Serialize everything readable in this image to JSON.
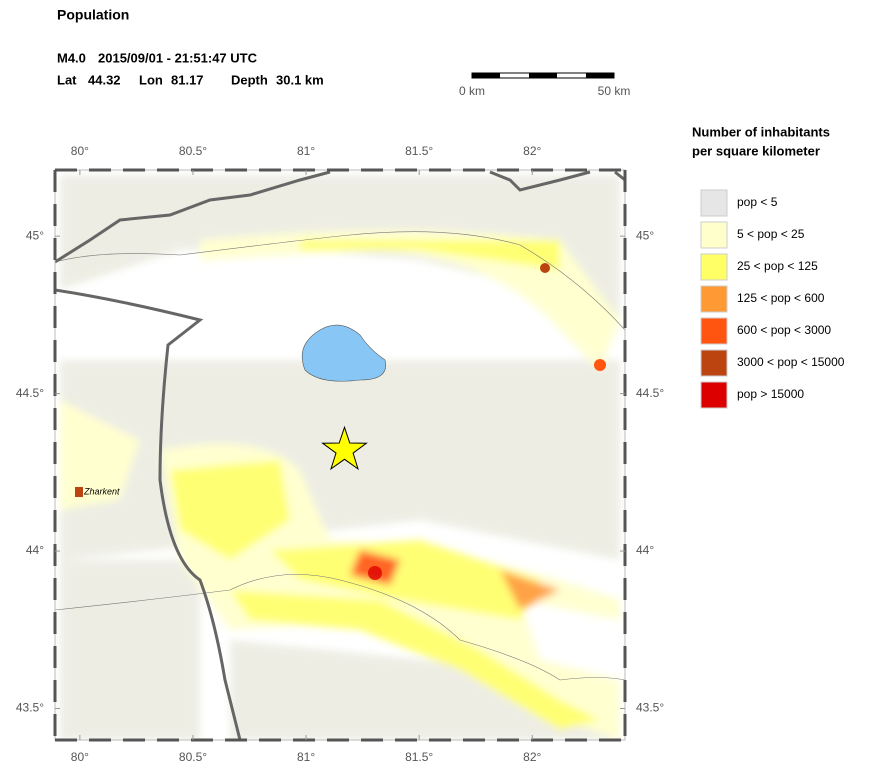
{
  "header": {
    "title": "Population",
    "event": {
      "magnitude": "M4.0",
      "datetime": "2015/09/01 - 21:51:47 UTC",
      "lat_label": "Lat",
      "lat": 44.32,
      "lon_label": "Lon",
      "lon": 81.17,
      "depth_label": "Depth",
      "depth": "30.1 km"
    }
  },
  "scalebar": {
    "start": "0 km",
    "end": "50 km"
  },
  "map": {
    "xlim": [
      79.89,
      82.41
    ],
    "ylim": [
      43.4,
      45.21
    ],
    "xticks": [
      {
        "value": 80,
        "label": "80°"
      },
      {
        "value": 80.5,
        "label": "80.5°"
      },
      {
        "value": 81,
        "label": "81°"
      },
      {
        "value": 81.5,
        "label": "81.5°"
      },
      {
        "value": 82,
        "label": "82°"
      }
    ],
    "yticks": [
      {
        "value": 45,
        "label": "45°"
      },
      {
        "value": 44.5,
        "label": "44.5°"
      },
      {
        "value": 44,
        "label": "44°"
      },
      {
        "value": 43.5,
        "label": "43.5°"
      }
    ],
    "places": [
      {
        "name": "Zharkent"
      }
    ]
  },
  "legend": {
    "title": [
      "Number of inhabitants",
      "per square kilometer"
    ],
    "items": [
      {
        "label": "pop < 5",
        "color": "#e6e6e6"
      },
      {
        "label": "5 < pop < 25",
        "color": "#ffffcc"
      },
      {
        "label": "25 < pop < 125",
        "color": "#ffff66"
      },
      {
        "label": "125 < pop < 600",
        "color": "#ff9933"
      },
      {
        "label": "600 < pop < 3000",
        "color": "#ff5511"
      },
      {
        "label": "3000 < pop < 15000",
        "color": "#bb4411"
      },
      {
        "label": "pop > 15000",
        "color": "#dd0000"
      }
    ]
  }
}
